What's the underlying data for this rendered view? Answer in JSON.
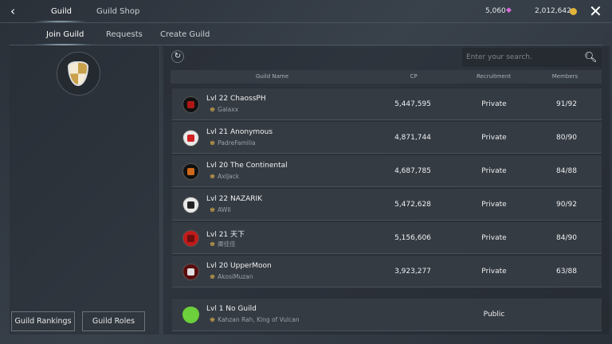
{
  "header": {
    "tabs": [
      {
        "label": "Guild",
        "active": true
      },
      {
        "label": "Guild Shop",
        "active": false
      }
    ],
    "gems": "5,060",
    "gold": "2,012,642"
  },
  "subtabs": [
    {
      "label": "Join Guild",
      "active": true
    },
    {
      "label": "Requests"
    },
    {
      "label": "Create Guild"
    }
  ],
  "left": {
    "rankings_label": "Guild Rankings",
    "roles_label": "Guild Roles"
  },
  "search": {
    "placeholder": "Enter your search."
  },
  "table": {
    "columns": [
      "Guild Name",
      "CP",
      "Recruitment",
      "Members"
    ],
    "rows": [
      {
        "name": "Lvl 22 ChaossPH",
        "leader": "Galaxx",
        "cp": "5,447,595",
        "recruitment": "Private",
        "members": "91/92",
        "emblem_color": "#b01818",
        "emblem_bg": "#111"
      },
      {
        "name": "Lvl 21 Anonymous",
        "leader": "PadreFamilia",
        "cp": "4,871,744",
        "recruitment": "Private",
        "members": "80/90",
        "emblem_color": "#d02020",
        "emblem_bg": "#e8e8e8"
      },
      {
        "name": "Lvl 20 The Continental",
        "leader": "AxlJack",
        "cp": "4,687,785",
        "recruitment": "Private",
        "members": "84/88",
        "emblem_color": "#d06a1a",
        "emblem_bg": "#111"
      },
      {
        "name": "Lvl 22 NAZARIK",
        "leader": "AWII",
        "cp": "5,472,628",
        "recruitment": "Private",
        "members": "90/92",
        "emblem_color": "#222",
        "emblem_bg": "#e8e8e8"
      },
      {
        "name": "Lvl 21 天下",
        "leader": "卿佳佳",
        "cp": "5,156,606",
        "recruitment": "Private",
        "members": "84/90",
        "emblem_color": "#6a0e0e",
        "emblem_bg": "#c01a1a"
      },
      {
        "name": "Lvl 20 UpperMoon",
        "leader": "AkosiMuzan",
        "cp": "3,923,277",
        "recruitment": "Private",
        "members": "63/88",
        "emblem_color": "#e0e0e0",
        "emblem_bg": "#5a0d0d"
      }
    ],
    "own": {
      "name": "Lvl 1 No Guild",
      "leader": "Kahzan Rah, King of Vulcan",
      "recruitment": "Public",
      "emblem_color": "#1f7a1f",
      "emblem_bg": "#6ccf3c"
    }
  }
}
